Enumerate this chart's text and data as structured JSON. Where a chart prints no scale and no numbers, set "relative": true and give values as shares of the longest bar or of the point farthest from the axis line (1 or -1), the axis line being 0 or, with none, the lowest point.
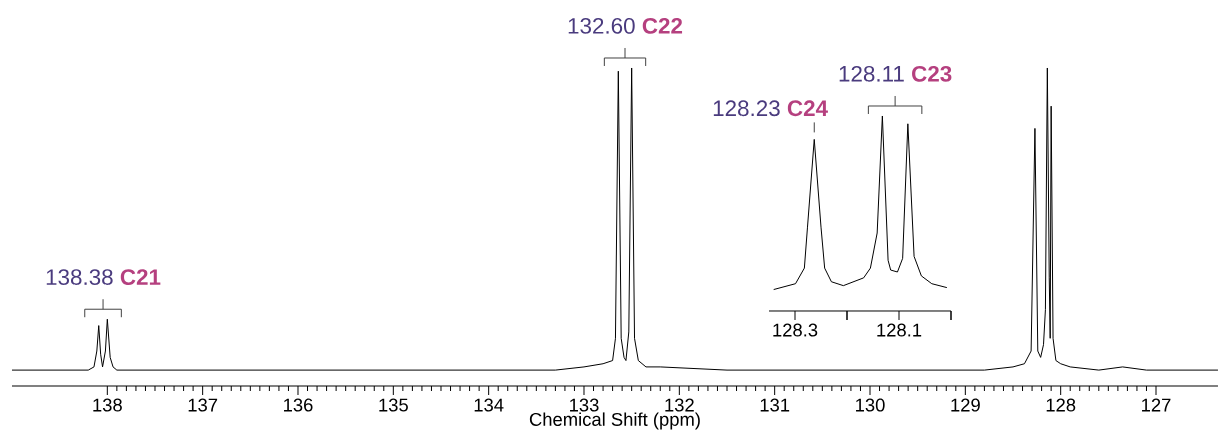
{
  "chart_data": [
    {
      "type": "line",
      "relative": true,
      "xlabel": "Chemical Shift (ppm)",
      "xlim": [
        139.0,
        126.35
      ],
      "xticks": [
        138,
        137,
        136,
        135,
        134,
        133,
        132,
        131,
        130,
        129,
        128,
        127
      ],
      "series": [
        {
          "color": "#000000",
          "x": [
            139.0,
            138.6,
            138.2,
            138.14,
            138.11,
            138.09,
            138.07,
            138.05,
            138.02,
            138.0,
            137.97,
            137.94,
            137.9,
            137.5,
            136.5,
            135.5,
            134.5,
            133.6,
            133.3,
            133.0,
            132.8,
            132.7,
            132.67,
            132.64,
            132.61,
            132.58,
            132.56,
            132.53,
            132.5,
            132.47,
            132.43,
            132.35,
            132.2,
            131.5,
            130.5,
            129.5,
            128.8,
            128.5,
            128.38,
            128.31,
            128.27,
            128.24,
            128.21,
            128.18,
            128.16,
            128.14,
            128.12,
            128.11,
            128.1,
            128.08,
            128.05,
            128.0,
            127.9,
            127.6,
            127.35,
            127.1,
            126.8,
            126.35
          ],
          "values": [
            0.05,
            0.05,
            0.05,
            0.06,
            0.11,
            0.19,
            0.1,
            0.06,
            0.11,
            0.21,
            0.09,
            0.06,
            0.05,
            0.05,
            0.05,
            0.05,
            0.05,
            0.05,
            0.05,
            0.06,
            0.07,
            0.08,
            0.15,
            0.99,
            0.15,
            0.09,
            0.08,
            0.17,
            1.0,
            0.15,
            0.08,
            0.06,
            0.06,
            0.05,
            0.05,
            0.05,
            0.05,
            0.06,
            0.07,
            0.11,
            0.81,
            0.11,
            0.09,
            0.13,
            0.24,
            1.0,
            0.34,
            0.15,
            0.88,
            0.15,
            0.08,
            0.07,
            0.06,
            0.05,
            0.06,
            0.05,
            0.05,
            0.05
          ]
        }
      ],
      "annotations": [
        "138.38 **C21**",
        "132.60 **C22**"
      ]
    },
    {
      "type": "line",
      "relative": true,
      "xlim": [
        128.35,
        128.0
      ],
      "xticks": [
        128.3,
        {
          "value": 128.2,
          "label": null
        },
        128.1,
        {
          "value": 128.0,
          "label": null
        }
      ],
      "series": [
        {
          "color": "#000000",
          "x": [
            128.341,
            128.299,
            128.282,
            128.276,
            128.263,
            128.25,
            128.243,
            128.23,
            128.207,
            128.168,
            128.155,
            128.142,
            128.132,
            128.121,
            128.116,
            128.103,
            128.093,
            128.083,
            128.071,
            128.057,
            128.037,
            128.008
          ],
          "values": [
            0.11,
            0.14,
            0.22,
            0.43,
            0.88,
            0.43,
            0.22,
            0.15,
            0.13,
            0.17,
            0.22,
            0.4,
            1.0,
            0.26,
            0.21,
            0.2,
            0.27,
            0.96,
            0.28,
            0.18,
            0.14,
            0.12
          ]
        }
      ],
      "annotations": [
        "128.23 **C24**",
        "128.11 **C23**"
      ]
    }
  ]
}
